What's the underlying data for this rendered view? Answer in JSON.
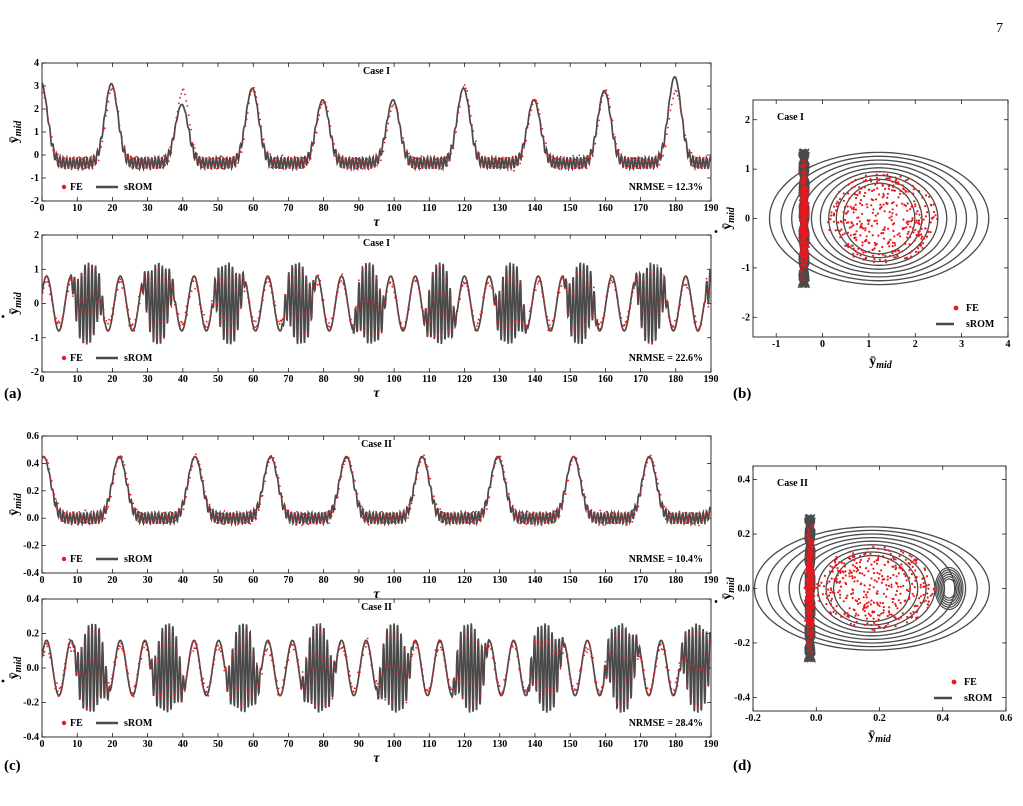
{
  "page_number": "7",
  "colors": {
    "fe": "#e8191f",
    "srom": "#4a4a4a",
    "axis": "#000000"
  },
  "chart_data": [
    {
      "id": "a1",
      "panel_label": "",
      "type": "line",
      "case": "Case I",
      "xlabel": "τ",
      "ylabel": "ȳ",
      "ylabel_sub": "mid",
      "ylabel_dot": false,
      "xlim": [
        0,
        190
      ],
      "ylim": [
        -2,
        4
      ],
      "xticks": [
        0,
        10,
        20,
        30,
        40,
        50,
        60,
        70,
        80,
        90,
        100,
        110,
        120,
        130,
        140,
        150,
        160,
        170,
        180,
        190
      ],
      "yticks": [
        -2,
        -1,
        0,
        1,
        2,
        3,
        4
      ],
      "legend": [
        "FE",
        "sROM"
      ],
      "nrmse": "NRMSE = 12.3%",
      "signal": {
        "period": 20,
        "rise": 5,
        "peak_fe": [
          2.7,
          2.9,
          2.8,
          2.9,
          2.3,
          2.2,
          3.0,
          2.4,
          2.8,
          2.8
        ],
        "peak_srom": [
          3.2,
          3.1,
          2.2,
          2.9,
          2.4,
          2.4,
          2.9,
          2.4,
          2.8,
          3.4
        ],
        "base": -0.35
      }
    },
    {
      "id": "a2",
      "panel_label": "(a)",
      "type": "line",
      "case": "Case I",
      "xlabel": "τ",
      "ylabel": "ȳ",
      "ylabel_sub": "mid",
      "ylabel_dot": true,
      "xlim": [
        0,
        190
      ],
      "ylim": [
        -2,
        2
      ],
      "xticks": [
        0,
        10,
        20,
        30,
        40,
        50,
        60,
        70,
        80,
        90,
        100,
        110,
        120,
        130,
        140,
        150,
        160,
        170,
        180,
        190
      ],
      "yticks": [
        -2,
        -1,
        0,
        1,
        2
      ],
      "legend": [
        "FE",
        "sROM"
      ],
      "nrmse": "NRMSE = 22.6%",
      "signal": {
        "period": 20,
        "amp_osc": 1.2,
        "amp_slow": 1.0
      }
    },
    {
      "id": "b",
      "panel_label": "(b)",
      "type": "scatter",
      "case": "Case I",
      "xlabel": "ȳ",
      "xlabel_sub": "mid",
      "ylabel": "ȳ",
      "ylabel_sub": "mid",
      "ylabel_dot": true,
      "xlim": [
        -1.5,
        4
      ],
      "ylim": [
        -2.4,
        2.4
      ],
      "xticks": [
        -1,
        0,
        1,
        2,
        3,
        4
      ],
      "yticks": [
        -2,
        -1,
        0,
        1,
        2
      ],
      "legend": [
        "FE",
        "sROM"
      ],
      "signal": {
        "left_x": -0.4,
        "left_h": 1.4,
        "orbit_cx": 1.5,
        "orbit_rx": 1.4,
        "orbit_ry": 1.3
      }
    },
    {
      "id": "c1",
      "panel_label": "",
      "type": "line",
      "case": "Case II",
      "xlabel": "τ",
      "ylabel": "ȳ",
      "ylabel_sub": "mid",
      "ylabel_dot": false,
      "xlim": [
        0,
        190
      ],
      "ylim": [
        -0.4,
        0.6
      ],
      "xticks": [
        0,
        10,
        20,
        30,
        40,
        50,
        60,
        70,
        80,
        90,
        100,
        110,
        120,
        130,
        140,
        150,
        160,
        170,
        180,
        190
      ],
      "yticks": [
        -0.4,
        -0.2,
        0.0,
        0.2,
        0.4,
        0.6
      ],
      "legend": [
        "FE",
        "sROM"
      ],
      "nrmse": "NRMSE = 10.4%",
      "signal": {
        "period": 21.5,
        "peak": 0.45,
        "base": 0.0
      }
    },
    {
      "id": "c2",
      "panel_label": "(c)",
      "type": "line",
      "case": "Case II",
      "xlabel": "τ",
      "ylabel": "ȳ",
      "ylabel_sub": "mid",
      "ylabel_dot": true,
      "xlim": [
        0,
        190
      ],
      "ylim": [
        -0.4,
        0.4
      ],
      "xticks": [
        0,
        10,
        20,
        30,
        40,
        50,
        60,
        70,
        80,
        90,
        100,
        110,
        120,
        130,
        140,
        150,
        160,
        170,
        180,
        190
      ],
      "yticks": [
        -0.4,
        -0.2,
        0.0,
        0.2,
        0.4
      ],
      "legend": [
        "FE",
        "sROM"
      ],
      "nrmse": "NRMSE = 28.4%",
      "signal": {
        "period": 21.5,
        "amp_osc": 0.26,
        "amp_slow": 0.2
      }
    },
    {
      "id": "d",
      "panel_label": "(d)",
      "type": "scatter",
      "case": "Case II",
      "xlabel": "ȳ",
      "xlabel_sub": "mid",
      "ylabel": "ȳ",
      "ylabel_sub": "mid",
      "ylabel_dot": true,
      "xlim": [
        -0.2,
        0.6
      ],
      "ylim": [
        -0.45,
        0.45
      ],
      "xticks": [
        -0.2,
        0.0,
        0.2,
        0.4,
        0.6
      ],
      "yticks": [
        -0.4,
        -0.2,
        0.0,
        0.2,
        0.4
      ],
      "legend": [
        "FE",
        "sROM"
      ],
      "signal": {
        "left_x": -0.02,
        "left_h": 0.27,
        "orbit_cx": 0.22,
        "orbit_rx": 0.22,
        "orbit_ry": 0.22,
        "tight_cx": 0.42,
        "tight_rx": 0.04,
        "tight_ry": 0.07
      }
    }
  ]
}
